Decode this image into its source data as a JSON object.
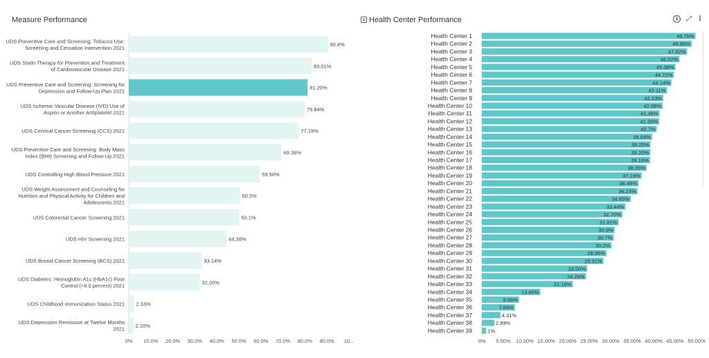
{
  "panels": {
    "left_title": "Measure Performance",
    "right_title": "Health Center Performance"
  },
  "icons": {
    "panel": "table-icon",
    "info": "info-icon",
    "expand": "expand-icon",
    "more": "more-vertical-icon"
  },
  "colors": {
    "highlight": "#5fc6c9",
    "light": "#e2f4f4",
    "hc_bar": "#5fc6c9"
  },
  "chart_data": [
    {
      "type": "bar",
      "orientation": "horizontal",
      "title": "Measure Performance",
      "categories": [
        [
          "UDS Preventive Care and Screening: Tobacco Use:",
          "Screening and Cessation Intervention 2021"
        ],
        [
          "UDS Statin Therapy for Prevention and Treatment",
          "of Cardiovascular Disease 2021"
        ],
        [
          "UDS Preventive Care and Screening: Screening for",
          "Depression and Follow-Up Plan 2021"
        ],
        [
          "UDS Ischemic Vascular Disease (IVD) Use of",
          "Aspirin or Another Antiplatelet 2021"
        ],
        [
          "UDS Cervical Cancer Screening (CCS) 2021"
        ],
        [
          "UDS Preventive Care and Screening: Body Mass",
          "Index (BMI) Screening and Follow-Up 2021"
        ],
        [
          "UDS Controlling High Blood Pressure 2021"
        ],
        [
          "UDS Weight Assessment and Counseling for",
          "Nutrition and Physical Activity for Children and",
          "Adolescents 2021"
        ],
        [
          "UDS Colorectal Cancer Screening 2021"
        ],
        [
          "UDS HIV Screening 2021"
        ],
        [
          "UDS Breast Cancer Screening (BCS) 2021"
        ],
        [
          "UDS Diabetes: Hemoglobin A1c (HbA1c) Poor",
          "Control (>9.0 percent) 2021"
        ],
        [
          "UDS Childhood Immunization Status 2021"
        ],
        [
          "UDS Depression Remission at Twelve Months",
          "2021"
        ]
      ],
      "values": [
        90.4,
        83.01,
        81.2,
        79.84,
        77.19,
        69.36,
        59.5,
        50.5,
        50.1,
        44.38,
        33.14,
        32.2,
        2.33,
        2.1
      ],
      "value_labels": [
        "90.4%",
        "83.01%",
        "81.20%",
        "79.84%",
        "77.19%",
        "69.36%",
        "59.50%",
        "50.5%",
        "50.1%",
        "44.38%",
        "33.14%",
        "32.20%",
        "2.33%",
        "2.10%"
      ],
      "highlighted_index": 2,
      "xlim": [
        0,
        100
      ],
      "xticks": [
        "0%",
        "10.0%",
        "20.0%",
        "30.0%",
        "40.0%",
        "50.0%",
        "60.0%",
        "70.0%",
        "80.0%",
        "90.0%",
        "10..."
      ],
      "xtick_values": [
        0,
        10,
        20,
        30,
        40,
        50,
        60,
        70,
        80,
        90,
        100
      ]
    },
    {
      "type": "bar",
      "orientation": "horizontal",
      "title": "Health Center Performance",
      "categories": [
        "Health Center 1",
        "Health Center 2",
        "Health Center 3",
        "Health Center 4",
        "Health Center 5",
        "Health Center 6",
        "Health Center 7",
        "Health Center 8",
        "Health Center 9",
        "Health Center 10",
        "Health Center 11",
        "Health Center 12",
        "Health Center 13",
        "Health Center 14",
        "Health Center 15",
        "Health Center 16",
        "Health Center 17",
        "Health Center 18",
        "Health Center 19",
        "Health Center 20",
        "Health Center 21",
        "Health Center 22",
        "Health Center 23",
        "Health Center 24",
        "Health Center 25",
        "Health Center 26",
        "Health Center 27",
        "Health Center 28",
        "Health Center 29",
        "Health Center 30",
        "Health Center 31",
        "Health Center 32",
        "Health Center 33",
        "Health Center 34",
        "Health Center 35",
        "Health Center 36",
        "Health Center 37",
        "Health Center 38",
        "Health Center 39"
      ],
      "values": [
        49.76,
        48.85,
        47.82,
        46.02,
        45.08,
        44.72,
        44.14,
        43.11,
        42.23,
        42.08,
        41.36,
        41.3,
        40.7,
        39.64,
        39.25,
        39.2,
        39.16,
        38.35,
        37.19,
        36.46,
        36.24,
        34.65,
        33.44,
        32.7,
        31.81,
        30.9,
        30.7,
        30.2,
        28.99,
        28.31,
        24.5,
        24.26,
        21.16,
        13.6,
        8.66,
        7.69,
        4.31,
        2.89,
        1
      ],
      "value_labels": [
        "49.76%",
        "48.85%",
        "47.82%",
        "46.02%",
        "45.08%",
        "44.72%",
        "44.14%",
        "43.11%",
        "42.23%",
        "42.08%",
        "41.36%",
        "41.30%",
        "40.7%",
        "39.64%",
        "39.25%",
        "39.20%",
        "39.16%",
        "38.35%",
        "37.19%",
        "36.46%",
        "36.24%",
        "34.65%",
        "33.44%",
        "32.70%",
        "31.81%",
        "30.9%",
        "30.7%",
        "30.2%",
        "28.99%",
        "28.31%",
        "24.50%",
        "24.26%",
        "21.16%",
        "13.60%",
        "8.66%",
        "7.69%",
        "4.31%",
        "2.89%",
        "1%"
      ],
      "xlim": [
        0,
        50
      ],
      "xticks": [
        "0%",
        "5.00%",
        "10.00%",
        "15.00%",
        "20.00%",
        "25.00%",
        "30.00%",
        "35.00%",
        "40.00%",
        "45.00%",
        "50.00%"
      ],
      "xtick_values": [
        0,
        5,
        10,
        15,
        20,
        25,
        30,
        35,
        40,
        45,
        50
      ]
    }
  ]
}
